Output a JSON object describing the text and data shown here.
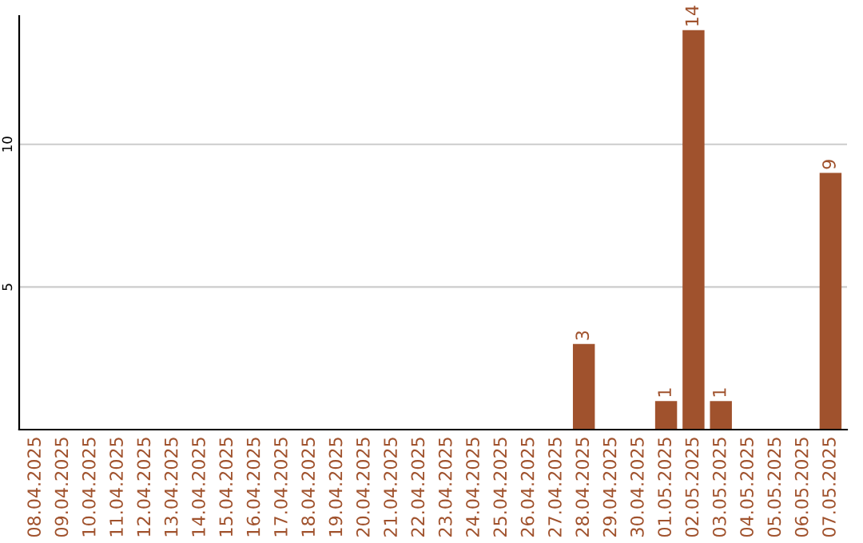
{
  "chart_data": {
    "type": "bar",
    "categories": [
      "08.04.2025",
      "09.04.2025",
      "10.04.2025",
      "11.04.2025",
      "12.04.2025",
      "13.04.2025",
      "14.04.2025",
      "15.04.2025",
      "16.04.2025",
      "17.04.2025",
      "18.04.2025",
      "19.04.2025",
      "20.04.2025",
      "21.04.2025",
      "22.04.2025",
      "23.04.2025",
      "24.04.2025",
      "25.04.2025",
      "26.04.2025",
      "27.04.2025",
      "28.04.2025",
      "29.04.2025",
      "30.04.2025",
      "01.05.2025",
      "02.05.2025",
      "03.05.2025",
      "04.05.2025",
      "05.05.2025",
      "06.05.2025",
      "07.05.2025"
    ],
    "values": [
      0,
      0,
      0,
      0,
      0,
      0,
      0,
      0,
      0,
      0,
      0,
      0,
      0,
      0,
      0,
      0,
      0,
      0,
      0,
      0,
      3,
      0,
      0,
      1,
      14,
      1,
      0,
      0,
      0,
      9
    ],
    "value_labels": [
      null,
      null,
      null,
      null,
      null,
      null,
      null,
      null,
      null,
      null,
      null,
      null,
      null,
      null,
      null,
      null,
      null,
      null,
      null,
      null,
      "3",
      null,
      null,
      "1",
      "14",
      "1",
      null,
      null,
      null,
      "9"
    ],
    "color": "#a0522d",
    "ylim": [
      0,
      14.5
    ],
    "yticks": [
      5,
      10
    ],
    "grid": "y"
  }
}
